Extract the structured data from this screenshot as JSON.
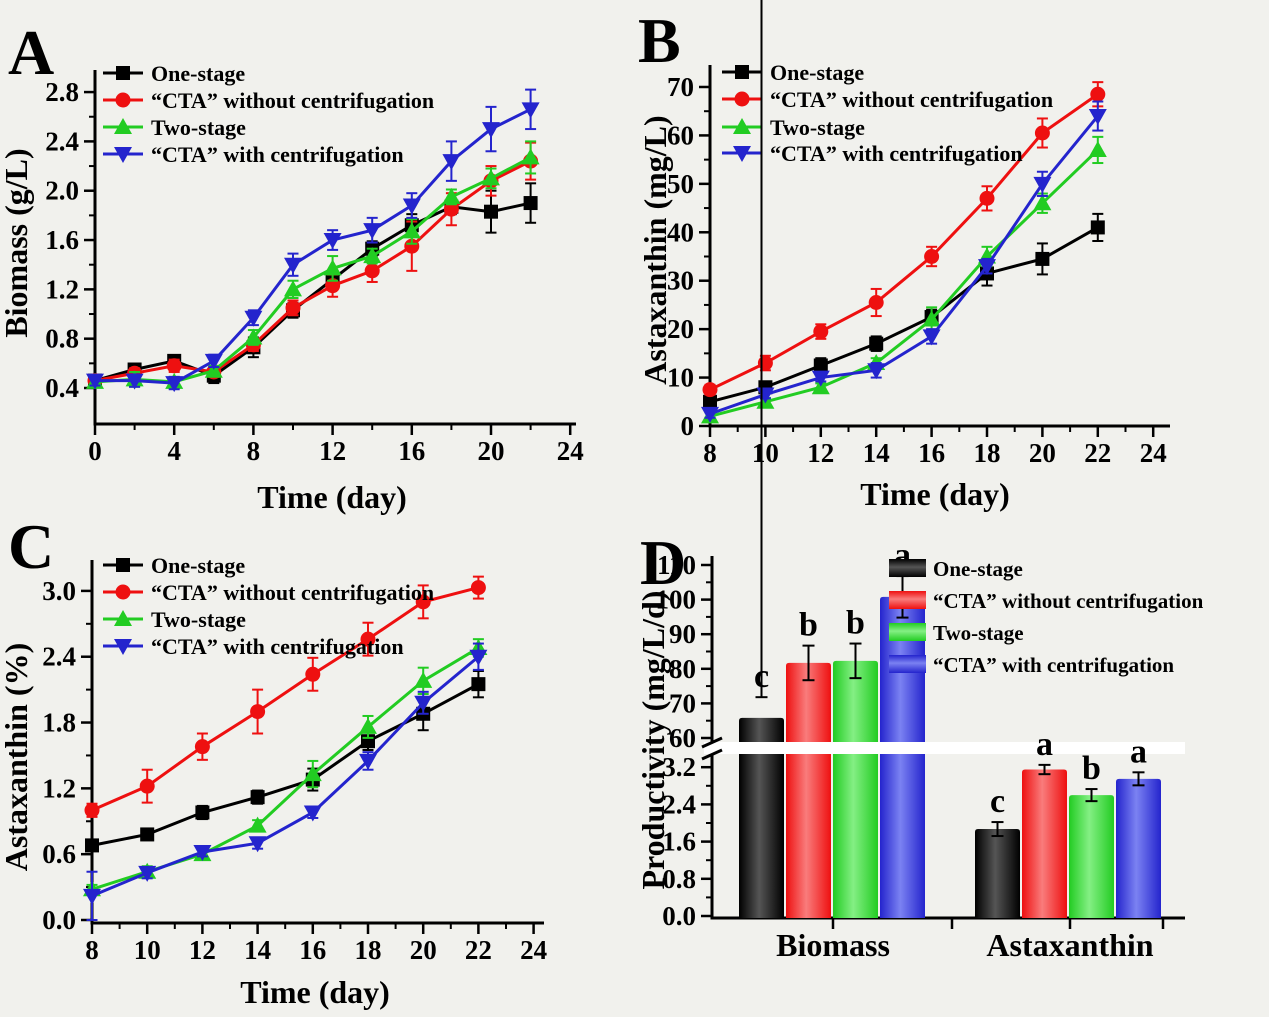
{
  "figure": {
    "background": "#f1f1ed",
    "description_panels": [
      "A",
      "B",
      "C",
      "D"
    ]
  },
  "chart_data": [
    {
      "panel_letter": "A",
      "type": "line",
      "xlabel": "Time (day)",
      "ylabel": "Biomass (g/L)",
      "x": [
        0,
        2,
        4,
        6,
        8,
        10,
        12,
        14,
        16,
        18,
        20,
        22
      ],
      "xlim": [
        0,
        24
      ],
      "ylim": [
        0.4,
        2.8
      ],
      "grid": false,
      "legend_position": "top-left",
      "xticks": {
        "major": [
          0,
          4,
          8,
          12,
          16,
          20,
          24
        ],
        "labels": [
          "0",
          "4",
          "8",
          "12",
          "16",
          "20",
          "24"
        ],
        "minor": [
          2,
          6,
          10,
          14,
          18,
          22
        ]
      },
      "yticks": {
        "major": [
          0.4,
          0.8,
          1.2,
          1.6,
          2.0,
          2.4,
          2.8
        ],
        "labels": [
          "0.4",
          "0.8",
          "1.2",
          "1.6",
          "2.0",
          "2.4",
          "2.8"
        ],
        "minor": [
          0.6,
          1.0,
          1.4,
          1.8,
          2.2,
          2.6
        ]
      },
      "series": [
        {
          "name": "One-stage",
          "color": "#000000",
          "marker": "square",
          "values": [
            0.46,
            0.55,
            0.62,
            0.5,
            0.73,
            1.03,
            1.28,
            1.53,
            1.72,
            1.87,
            1.83,
            1.9
          ],
          "errors": [
            0.03,
            0.04,
            0.04,
            0.06,
            0.08,
            0.06,
            0.06,
            0.06,
            0.09,
            0.06,
            0.17,
            0.16
          ]
        },
        {
          "name": "“CTA” without centrifugation",
          "color": "#ee1010",
          "marker": "circle",
          "values": [
            0.46,
            0.52,
            0.58,
            0.53,
            0.75,
            1.05,
            1.23,
            1.35,
            1.55,
            1.85,
            2.08,
            2.24
          ],
          "errors": [
            0.03,
            0.04,
            0.05,
            0.04,
            0.05,
            0.06,
            0.09,
            0.09,
            0.2,
            0.13,
            0.12,
            0.15
          ]
        },
        {
          "name": "Two-stage",
          "color": "#22cc22",
          "marker": "triangle-up",
          "values": [
            0.45,
            0.47,
            0.45,
            0.54,
            0.81,
            1.2,
            1.37,
            1.47,
            1.67,
            1.95,
            2.1,
            2.27
          ],
          "errors": [
            0.04,
            0.06,
            0.04,
            0.04,
            0.06,
            0.07,
            0.1,
            0.06,
            0.1,
            0.06,
            0.08,
            0.13
          ]
        },
        {
          "name": "“CTA” with centrifugation",
          "color": "#2424cd",
          "marker": "triangle-down",
          "values": [
            0.46,
            0.46,
            0.44,
            0.62,
            0.97,
            1.4,
            1.6,
            1.68,
            1.88,
            2.24,
            2.5,
            2.66
          ],
          "errors": [
            0.04,
            0.05,
            0.05,
            0.05,
            0.06,
            0.09,
            0.08,
            0.1,
            0.1,
            0.16,
            0.18,
            0.16
          ]
        }
      ]
    },
    {
      "panel_letter": "B",
      "type": "line",
      "xlabel": "Time (day)",
      "ylabel": "Astaxanthin (mg/L)",
      "x": [
        8,
        10,
        12,
        14,
        16,
        18,
        20,
        22
      ],
      "xlim": [
        8,
        24
      ],
      "ylim": [
        0,
        70
      ],
      "grid": false,
      "legend_position": "top-left",
      "xticks": {
        "major": [
          8,
          10,
          12,
          14,
          16,
          18,
          20,
          22,
          24
        ],
        "labels": [
          "8",
          "10",
          "12",
          "14",
          "16",
          "18",
          "20",
          "22",
          "24"
        ],
        "minor": [
          9,
          11,
          13,
          15,
          17,
          19,
          21,
          23
        ]
      },
      "yticks": {
        "major": [
          0,
          10,
          20,
          30,
          40,
          50,
          60,
          70
        ],
        "labels": [
          "0",
          "10",
          "20",
          "30",
          "40",
          "50",
          "60",
          "70"
        ],
        "minor": [
          5,
          15,
          25,
          35,
          45,
          55,
          65
        ]
      },
      "series": [
        {
          "name": "One-stage",
          "color": "#000000",
          "marker": "square",
          "values": [
            5,
            8,
            12.5,
            17,
            22.5,
            31.5,
            34.5,
            41
          ],
          "errors": [
            1.5,
            1,
            1.5,
            1.5,
            1.5,
            2.5,
            3.2,
            2.8
          ]
        },
        {
          "name": "“CTA” without centrifugation",
          "color": "#ee1010",
          "marker": "circle",
          "values": [
            7.5,
            13,
            19.5,
            25.5,
            35,
            47,
            60.5,
            68.5
          ],
          "errors": [
            1,
            1.5,
            1.5,
            2.8,
            2,
            2.5,
            3,
            2.5
          ]
        },
        {
          "name": "Two-stage",
          "color": "#22cc22",
          "marker": "triangle-up",
          "values": [
            2,
            5,
            8,
            13,
            22,
            35,
            46,
            57
          ],
          "errors": [
            0.8,
            0.8,
            0.8,
            1,
            2.5,
            2,
            2,
            2.7
          ]
        },
        {
          "name": "“CTA” with centrifugation",
          "color": "#2424cd",
          "marker": "triangle-down",
          "values": [
            2.5,
            6.5,
            10,
            11.5,
            18.5,
            33,
            50,
            64
          ],
          "errors": [
            0.8,
            0.8,
            0.8,
            1.5,
            1.5,
            1.5,
            2.5,
            3
          ]
        }
      ]
    },
    {
      "panel_letter": "C",
      "type": "line",
      "xlabel": "Time (day)",
      "ylabel": "Astaxanthin (%)",
      "x": [
        8,
        10,
        12,
        14,
        16,
        18,
        20,
        22
      ],
      "xlim": [
        8,
        24
      ],
      "ylim": [
        0.0,
        3.0
      ],
      "grid": false,
      "legend_position": "top-left",
      "xticks": {
        "major": [
          8,
          10,
          12,
          14,
          16,
          18,
          20,
          22,
          24
        ],
        "labels": [
          "8",
          "10",
          "12",
          "14",
          "16",
          "18",
          "20",
          "22",
          "24"
        ],
        "minor": [
          9,
          11,
          13,
          15,
          17,
          19,
          21,
          23
        ]
      },
      "yticks": {
        "major": [
          0.0,
          0.6,
          1.2,
          1.8,
          2.4,
          3.0
        ],
        "labels": [
          "0.0",
          "0.6",
          "1.2",
          "1.8",
          "2.4",
          "3.0"
        ],
        "minor": [
          0.3,
          0.9,
          1.5,
          2.1,
          2.7
        ]
      },
      "series": [
        {
          "name": "One-stage",
          "color": "#000000",
          "marker": "square",
          "values": [
            0.68,
            0.78,
            0.98,
            1.12,
            1.28,
            1.63,
            1.88,
            2.15
          ],
          "errors": [
            0.05,
            0.05,
            0.06,
            0.06,
            0.1,
            0.08,
            0.15,
            0.12
          ]
        },
        {
          "name": "“CTA” without centrifugation",
          "color": "#ee1010",
          "marker": "circle",
          "values": [
            1.0,
            1.22,
            1.58,
            1.9,
            2.24,
            2.56,
            2.9,
            3.03
          ],
          "errors": [
            0.06,
            0.15,
            0.12,
            0.2,
            0.15,
            0.15,
            0.15,
            0.1
          ]
        },
        {
          "name": "Two-stage",
          "color": "#22cc22",
          "marker": "triangle-up",
          "values": [
            0.28,
            0.44,
            0.6,
            0.86,
            1.33,
            1.76,
            2.18,
            2.48
          ],
          "errors": [
            0.04,
            0.05,
            0.04,
            0.05,
            0.12,
            0.1,
            0.12,
            0.08
          ]
        },
        {
          "name": "“CTA” with centrifugation",
          "color": "#2424cd",
          "marker": "triangle-down",
          "values": [
            0.22,
            0.43,
            0.62,
            0.7,
            0.98,
            1.45,
            1.98,
            2.4
          ],
          "errors": [
            0.22,
            0.05,
            0.04,
            0.05,
            0.05,
            0.08,
            0.1,
            0.12
          ]
        }
      ]
    },
    {
      "panel_letter": "D",
      "type": "bar",
      "ylabel": "Productivity (mg/L/d)",
      "categories": [
        "Biomass",
        "Astaxanthin"
      ],
      "grid": false,
      "legend_position": "top-right",
      "axis_break": true,
      "lower_axis": {
        "range": [
          0,
          3.55
        ],
        "ticks": [
          0,
          0.8,
          1.6,
          2.4,
          3.2
        ],
        "labels": [
          "0.0",
          "0.8",
          "1.6",
          "2.4",
          "3.2"
        ],
        "minor": [
          0.4,
          1.2,
          2.0,
          2.8
        ]
      },
      "upper_axis": {
        "range": [
          60,
          112
        ],
        "ticks": [
          60,
          70,
          80,
          90,
          100,
          110
        ],
        "labels": [
          "60",
          "70",
          "80",
          "90",
          "100",
          "110"
        ],
        "minor": [
          65,
          75,
          85,
          95,
          105
        ]
      },
      "series": [
        {
          "name": "One-stage",
          "color": "#000000",
          "color_light": "#555555",
          "values": [
            65.8,
            1.87
          ],
          "errors": [
            6,
            0.15
          ],
          "sig_letters": [
            "c",
            "c"
          ]
        },
        {
          "name": "“CTA” without centrifugation",
          "color": "#ee1010",
          "color_light": "#f97c7c",
          "values": [
            81.7,
            3.15
          ],
          "errors": [
            5,
            0.1
          ],
          "sig_letters": [
            "b",
            "a"
          ]
        },
        {
          "name": "Two-stage",
          "color": "#22cc22",
          "color_light": "#84ef84",
          "values": [
            82.3,
            2.6
          ],
          "errors": [
            5,
            0.13
          ],
          "sig_letters": [
            "b",
            "b"
          ]
        },
        {
          "name": "“CTA” with centrifugation",
          "color": "#2424cd",
          "color_light": "#7b82f2",
          "values": [
            100.8,
            2.95
          ],
          "errors": [
            6,
            0.14
          ],
          "sig_letters": [
            "a",
            "a"
          ]
        }
      ]
    }
  ]
}
